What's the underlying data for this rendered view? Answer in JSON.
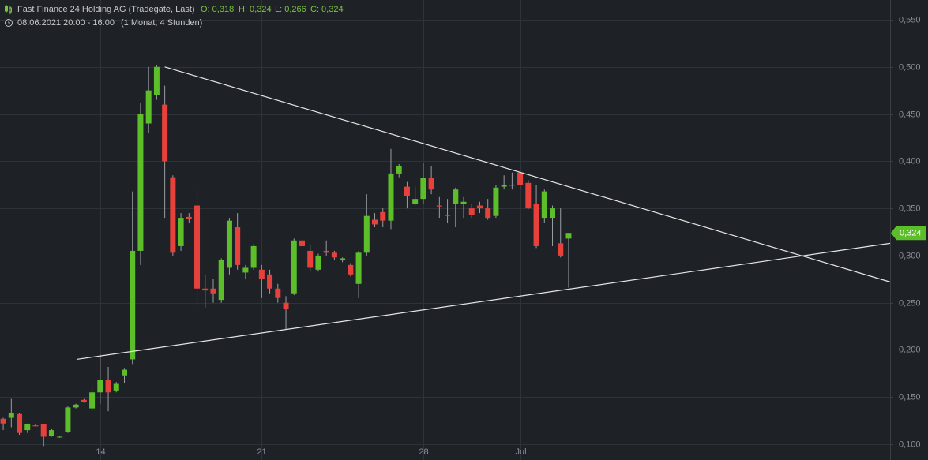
{
  "chart_data": {
    "type": "candlestick",
    "header": {
      "title": "Fast Finance 24 Holding AG (Tradegate, Last)",
      "ohlc": [
        "O: 0,318",
        "H: 0,324",
        "L: 0,266",
        "C: 0,324"
      ],
      "period": "08.06.2021 20:00 - 16:00",
      "interval": "(1 Monat, 4 Stunden)"
    },
    "categories": [
      null,
      null,
      null,
      null,
      null,
      null,
      null,
      null,
      null,
      null,
      null,
      null,
      "14",
      null,
      null,
      null,
      null,
      null,
      null,
      null,
      null,
      null,
      null,
      null,
      null,
      null,
      null,
      null,
      null,
      null,
      null,
      null,
      "21",
      null,
      null,
      null,
      null,
      null,
      null,
      null,
      null,
      null,
      null,
      null,
      null,
      null,
      null,
      null,
      null,
      null,
      null,
      null,
      "28",
      null,
      null,
      null,
      null,
      null,
      null,
      null,
      null,
      null,
      null,
      null,
      "Jul",
      null,
      null,
      null,
      null,
      null,
      null
    ],
    "open": [
      0.127,
      0.128,
      0.132,
      0.115,
      0.12,
      0.121,
      0.109,
      0.108,
      0.113,
      0.139,
      0.147,
      0.138,
      0.155,
      0.168,
      0.157,
      0.173,
      0.19,
      0.305,
      0.44,
      0.47,
      0.46,
      0.383,
      0.31,
      0.341,
      0.353,
      0.265,
      0.265,
      0.253,
      0.287,
      0.33,
      0.282,
      0.287,
      0.285,
      0.28,
      0.265,
      0.25,
      0.26,
      0.316,
      0.305,
      0.285,
      0.305,
      0.303,
      0.295,
      0.29,
      0.27,
      0.303,
      0.338,
      0.346,
      0.337,
      0.387,
      0.373,
      0.355,
      0.36,
      0.382,
      0.353,
      0.343,
      0.355,
      0.355,
      0.35,
      0.353,
      0.35,
      0.342,
      0.373,
      0.375,
      0.388,
      0.377,
      0.355,
      0.34,
      0.34,
      0.313,
      0.318
    ],
    "high": [
      0.128,
      0.148,
      0.133,
      0.122,
      0.121,
      0.121,
      0.116,
      0.109,
      0.14,
      0.143,
      0.148,
      0.16,
      0.195,
      0.182,
      0.166,
      0.18,
      0.368,
      0.462,
      0.5,
      0.502,
      0.48,
      0.385,
      0.345,
      0.345,
      0.37,
      0.28,
      0.275,
      0.297,
      0.34,
      0.345,
      0.29,
      0.312,
      0.29,
      0.285,
      0.27,
      0.257,
      0.318,
      0.358,
      0.312,
      0.302,
      0.316,
      0.305,
      0.298,
      0.292,
      0.305,
      0.365,
      0.345,
      0.35,
      0.413,
      0.397,
      0.378,
      0.373,
      0.398,
      0.395,
      0.362,
      0.36,
      0.372,
      0.362,
      0.355,
      0.357,
      0.36,
      0.375,
      0.385,
      0.388,
      0.39,
      0.38,
      0.375,
      0.37,
      0.353,
      0.35,
      0.324
    ],
    "low": [
      0.115,
      0.118,
      0.11,
      0.112,
      0.119,
      0.098,
      0.108,
      0.107,
      0.112,
      0.138,
      0.144,
      0.135,
      0.143,
      0.135,
      0.155,
      0.165,
      0.185,
      0.29,
      0.43,
      0.465,
      0.34,
      0.3,
      0.305,
      0.335,
      0.245,
      0.245,
      0.25,
      0.25,
      0.28,
      0.285,
      0.275,
      0.285,
      0.255,
      0.26,
      0.25,
      0.222,
      0.258,
      0.3,
      0.283,
      0.283,
      0.3,
      0.295,
      0.293,
      0.278,
      0.255,
      0.3,
      0.33,
      0.33,
      0.328,
      0.383,
      0.35,
      0.353,
      0.355,
      0.365,
      0.34,
      0.335,
      0.33,
      0.34,
      0.34,
      0.345,
      0.338,
      0.34,
      0.37,
      0.37,
      0.37,
      0.349,
      0.308,
      0.335,
      0.31,
      0.298,
      0.266
    ],
    "close": [
      0.122,
      0.133,
      0.112,
      0.121,
      0.119,
      0.108,
      0.115,
      0.108,
      0.139,
      0.142,
      0.145,
      0.155,
      0.168,
      0.155,
      0.164,
      0.179,
      0.305,
      0.45,
      0.475,
      0.5,
      0.4,
      0.303,
      0.34,
      0.339,
      0.265,
      0.263,
      0.26,
      0.295,
      0.337,
      0.29,
      0.287,
      0.31,
      0.275,
      0.265,
      0.255,
      0.243,
      0.316,
      0.31,
      0.287,
      0.3,
      0.303,
      0.298,
      0.297,
      0.28,
      0.303,
      0.342,
      0.333,
      0.337,
      0.387,
      0.395,
      0.363,
      0.36,
      0.382,
      0.37,
      0.352,
      0.342,
      0.37,
      0.357,
      0.343,
      0.35,
      0.34,
      0.372,
      0.375,
      0.374,
      0.375,
      0.35,
      0.31,
      0.368,
      0.35,
      0.3,
      0.324
    ],
    "up_color": "#5cbf2a",
    "down_color": "#e8413c",
    "xlim": [
      -0.4,
      109.8
    ],
    "ylim": [
      0.0833,
      0.5709
    ],
    "yticks": [
      {
        "value": 0.1,
        "label": "0,100"
      },
      {
        "value": 0.15,
        "label": "0,150"
      },
      {
        "value": 0.2,
        "label": "0,200"
      },
      {
        "value": 0.25,
        "label": "0,250"
      },
      {
        "value": 0.3,
        "label": "0,300"
      },
      {
        "value": 0.35,
        "label": "0,350"
      },
      {
        "value": 0.4,
        "label": "0,400"
      },
      {
        "value": 0.45,
        "label": "0,450"
      },
      {
        "value": 0.5,
        "label": "0,500"
      },
      {
        "value": 0.55,
        "label": "0,550"
      }
    ],
    "last_price": {
      "value": 0.324,
      "label": "0,324"
    },
    "trendlines": [
      {
        "x": [
          9.1,
          109.8
        ],
        "y": [
          0.19,
          0.313
        ]
      },
      {
        "x": [
          20,
          109.8
        ],
        "y": [
          0.5,
          0.272
        ]
      }
    ],
    "grid": true
  }
}
